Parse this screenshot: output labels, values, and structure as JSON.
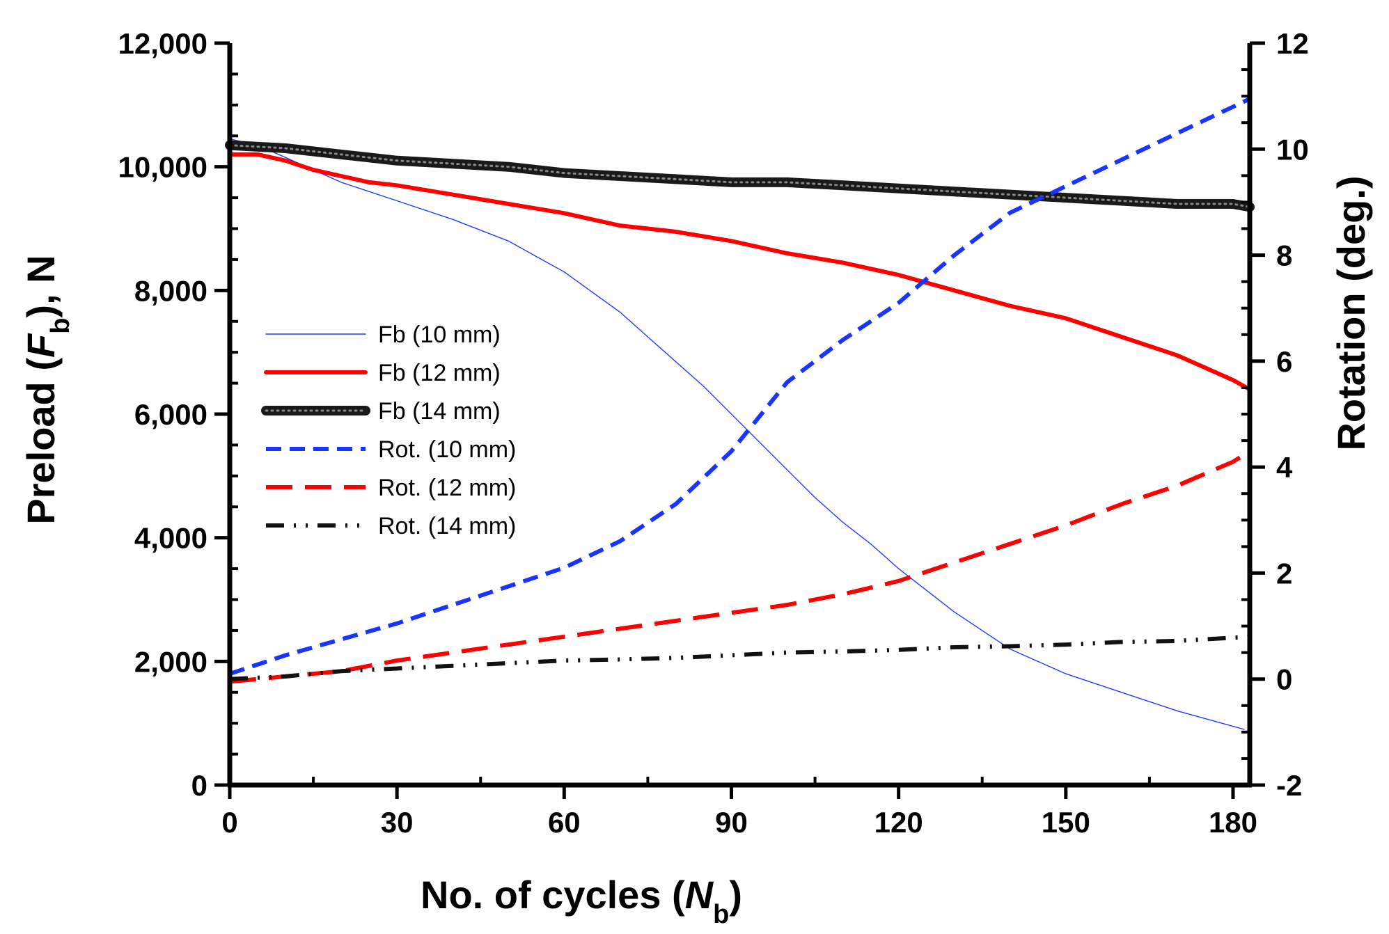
{
  "chart_data": {
    "type": "line",
    "xlabel": {
      "main": "No. of cycles (",
      "italic": "N",
      "sub": "b",
      "end": ")"
    },
    "ylabel_left": {
      "main": "Preload (",
      "italic": "F",
      "sub": "b",
      "end": "), N"
    },
    "ylabel_right": "Rotation (deg.)",
    "xlim": [
      0,
      183
    ],
    "ylim_left": [
      0,
      12000
    ],
    "ylim_right": [
      -2,
      12
    ],
    "x_ticks": [
      0,
      30,
      60,
      90,
      120,
      150,
      180
    ],
    "x_tick_labels": [
      "0",
      "30",
      "60",
      "90",
      "120",
      "150",
      "180"
    ],
    "y_left_ticks": [
      0,
      2000,
      4000,
      6000,
      8000,
      10000,
      12000
    ],
    "y_left_tick_labels": [
      "0",
      "2,000",
      "4,000",
      "6,000",
      "8,000",
      "10,000",
      "12,000"
    ],
    "y_right_ticks": [
      -2,
      0,
      2,
      4,
      6,
      8,
      10,
      12
    ],
    "y_right_tick_labels": [
      "-2",
      "0",
      "2",
      "4",
      "6",
      "8",
      "10",
      "12"
    ],
    "legend_position": "left-middle",
    "series": [
      {
        "name": "Fb (10 mm)",
        "axis": "left",
        "color": "#1f3bff",
        "style": "thin",
        "x": [
          0,
          5,
          10,
          15,
          20,
          25,
          30,
          40,
          50,
          60,
          70,
          75,
          80,
          85,
          90,
          95,
          100,
          105,
          110,
          115,
          120,
          125,
          130,
          140,
          150,
          160,
          170,
          180,
          182
        ],
        "y": [
          10450,
          10350,
          10150,
          9950,
          9750,
          9600,
          9450,
          9150,
          8800,
          8300,
          7650,
          7250,
          6850,
          6450,
          6000,
          5550,
          5100,
          4650,
          4250,
          3900,
          3500,
          3150,
          2800,
          2200,
          1800,
          1500,
          1200,
          950,
          900
        ]
      },
      {
        "name": "Fb (12 mm)",
        "axis": "left",
        "color": "#ff0000",
        "style": "solid",
        "x": [
          0,
          5,
          10,
          15,
          20,
          25,
          30,
          40,
          50,
          60,
          70,
          80,
          90,
          100,
          110,
          120,
          130,
          140,
          150,
          160,
          170,
          180,
          183
        ],
        "y": [
          10200,
          10200,
          10100,
          9950,
          9850,
          9750,
          9700,
          9550,
          9400,
          9250,
          9050,
          8950,
          8800,
          8600,
          8450,
          8250,
          8000,
          7750,
          7550,
          7250,
          6950,
          6550,
          6400
        ]
      },
      {
        "name": "Fb (14 mm)",
        "axis": "left",
        "color": "#1a1a1a",
        "style": "beaded",
        "x": [
          0,
          10,
          20,
          30,
          40,
          50,
          60,
          70,
          80,
          90,
          100,
          110,
          120,
          130,
          140,
          150,
          160,
          170,
          180,
          183
        ],
        "y": [
          10350,
          10300,
          10200,
          10100,
          10050,
          10000,
          9900,
          9850,
          9800,
          9750,
          9750,
          9700,
          9650,
          9600,
          9550,
          9500,
          9450,
          9400,
          9400,
          9350
        ]
      },
      {
        "name": "Rot. (10 mm)",
        "axis": "right",
        "color": "#1a34ff",
        "style": "dash",
        "x": [
          0,
          10,
          20,
          30,
          40,
          50,
          60,
          70,
          80,
          90,
          100,
          110,
          120,
          130,
          140,
          150,
          160,
          170,
          180,
          183
        ],
        "y": [
          0.1,
          0.45,
          0.75,
          1.05,
          1.4,
          1.75,
          2.1,
          2.6,
          3.3,
          4.3,
          5.6,
          6.4,
          7.1,
          8.0,
          8.8,
          9.3,
          9.8,
          10.3,
          10.8,
          10.95
        ]
      },
      {
        "name": "Rot. (12 mm)",
        "axis": "right",
        "color": "#ff0000",
        "style": "longdash",
        "x": [
          0,
          10,
          20,
          30,
          40,
          50,
          60,
          70,
          80,
          90,
          100,
          110,
          120,
          130,
          140,
          150,
          160,
          170,
          180,
          183
        ],
        "y": [
          -0.05,
          0.05,
          0.15,
          0.35,
          0.5,
          0.65,
          0.8,
          0.95,
          1.1,
          1.25,
          1.4,
          1.6,
          1.85,
          2.2,
          2.55,
          2.9,
          3.3,
          3.65,
          4.1,
          4.3
        ]
      },
      {
        "name": "Rot. (14 mm)",
        "axis": "right",
        "color": "#111111",
        "style": "dashdotdot",
        "x": [
          0,
          10,
          20,
          30,
          40,
          50,
          60,
          70,
          80,
          90,
          100,
          110,
          120,
          130,
          140,
          150,
          160,
          170,
          180,
          183
        ],
        "y": [
          0.0,
          0.05,
          0.15,
          0.2,
          0.25,
          0.3,
          0.35,
          0.37,
          0.4,
          0.45,
          0.5,
          0.52,
          0.55,
          0.6,
          0.62,
          0.65,
          0.7,
          0.72,
          0.78,
          0.8
        ]
      }
    ]
  }
}
